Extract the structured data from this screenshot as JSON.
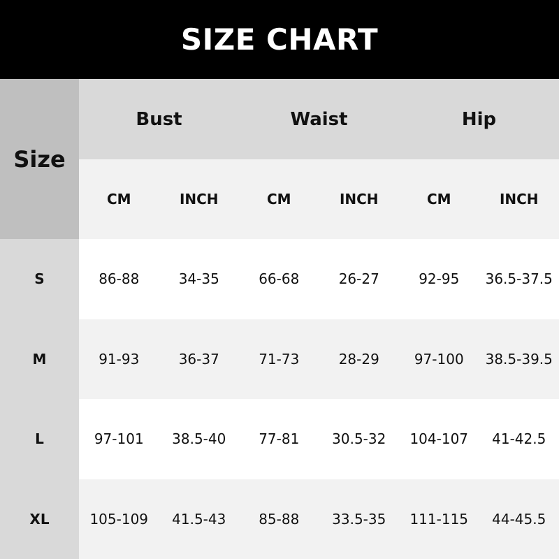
{
  "title": "SIZE CHART",
  "colors": {
    "title_bg": "#000000",
    "size_header_bg": "#bfbfbf",
    "group_header_bg": "#d9d9d9",
    "unit_row_bg": "#f2f2f2",
    "alt_row_bg": "#f2f2f2"
  },
  "chart_data": {
    "type": "table",
    "title": "SIZE CHART",
    "size_header": "Size",
    "groups": [
      "Bust",
      "Waist",
      "Hip"
    ],
    "units": [
      "CM",
      "INCH",
      "CM",
      "INCH",
      "CM",
      "INCH"
    ],
    "rows": [
      {
        "size": "S",
        "values": [
          "86-88",
          "34-35",
          "66-68",
          "26-27",
          "92-95",
          "36.5-37.5"
        ]
      },
      {
        "size": "M",
        "values": [
          "91-93",
          "36-37",
          "71-73",
          "28-29",
          "97-100",
          "38.5-39.5"
        ]
      },
      {
        "size": "L",
        "values": [
          "97-101",
          "38.5-40",
          "77-81",
          "30.5-32",
          "104-107",
          "41-42.5"
        ]
      },
      {
        "size": "XL",
        "values": [
          "105-109",
          "41.5-43",
          "85-88",
          "33.5-35",
          "111-115",
          "44-45.5"
        ]
      }
    ]
  }
}
